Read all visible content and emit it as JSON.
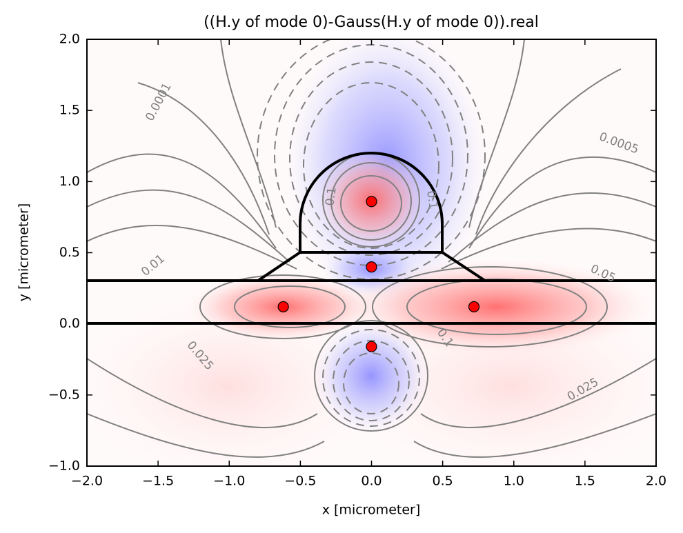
{
  "chart_data": {
    "type": "scatter",
    "title": "((H.y of mode 0)-Gauss(H.y of mode 0)).real",
    "x_label": "x [micrometer]",
    "y_label": "y [micrometer]",
    "x": [
      0.0,
      0.0,
      -0.62,
      0.72,
      0.0
    ],
    "values": [
      0.86,
      0.4,
      0.12,
      0.12,
      -0.16
    ],
    "color": "#ff0000",
    "xlim": [
      -2.0,
      2.0
    ],
    "ylim": [
      -1.0,
      2.0
    ],
    "xticks": [
      {
        "value": -2.0,
        "label": "−2.0"
      },
      {
        "value": -1.5,
        "label": "−1.5"
      },
      {
        "value": -1.0,
        "label": "−1.0"
      },
      {
        "value": -0.5,
        "label": "−0.5"
      },
      {
        "value": 0,
        "label": "0.0"
      },
      0.5,
      {
        "value": 1.0,
        "label": "1.0"
      },
      1.5,
      {
        "value": 2.0,
        "label": "2.0"
      }
    ],
    "yticks": [
      {
        "value": -1.0,
        "label": "−1.0"
      },
      {
        "value": -0.5,
        "label": "−0.5"
      },
      {
        "value": 0,
        "label": "0.0"
      },
      0.5,
      {
        "value": 1.0,
        "label": "1.0"
      },
      1.5,
      {
        "value": 2.0,
        "label": "2.0"
      }
    ],
    "contour_labels": [
      0.0001,
      0.0005,
      0.1,
      0.1,
      0.01,
      0.05,
      0.025,
      0.1,
      0.025
    ]
  }
}
